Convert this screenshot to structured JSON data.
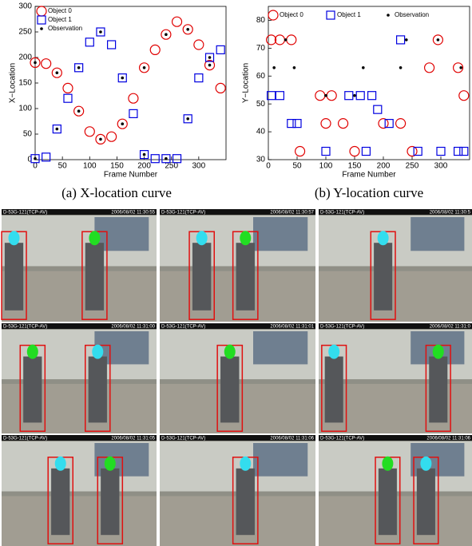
{
  "chart_data": [
    {
      "type": "scatter",
      "xlabel": "Frame Number",
      "ylabel": "X−Location",
      "xlim": [
        0,
        350
      ],
      "ylim": [
        0,
        300
      ],
      "xticks": [
        0,
        50,
        100,
        150,
        200,
        250,
        300
      ],
      "yticks": [
        0,
        50,
        100,
        150,
        200,
        250,
        300
      ],
      "series": [
        {
          "name": "Object 0",
          "color": "#e00000",
          "marker": "circle",
          "x": [
            0,
            20,
            40,
            60,
            80,
            100,
            120,
            140,
            160,
            180,
            200,
            220,
            240,
            260,
            280,
            300,
            320,
            340
          ],
          "values": [
            190,
            188,
            170,
            140,
            95,
            55,
            40,
            45,
            70,
            120,
            180,
            215,
            245,
            270,
            255,
            225,
            185,
            140
          ]
        },
        {
          "name": "Object 1",
          "color": "#0000e0",
          "marker": "square",
          "x": [
            0,
            20,
            40,
            60,
            80,
            100,
            120,
            140,
            160,
            180,
            200,
            220,
            240,
            260,
            280,
            300,
            320,
            340
          ],
          "values": [
            2,
            5,
            60,
            120,
            180,
            230,
            250,
            225,
            160,
            90,
            10,
            2,
            2,
            2,
            80,
            160,
            200,
            215
          ]
        },
        {
          "name": "Observation",
          "color": "#000000",
          "marker": "dot",
          "x": [
            0,
            40,
            80,
            120,
            160,
            200,
            240,
            280,
            320,
            0,
            40,
            80,
            120,
            160,
            200,
            240,
            280,
            320
          ],
          "values": [
            190,
            170,
            95,
            40,
            70,
            180,
            245,
            255,
            185,
            2,
            60,
            180,
            250,
            160,
            10,
            2,
            80,
            200
          ]
        }
      ]
    },
    {
      "type": "scatter",
      "xlabel": "Frame Number",
      "ylabel": "Y−Location",
      "xlim": [
        0,
        350
      ],
      "ylim": [
        30,
        85
      ],
      "xticks": [
        0,
        50,
        100,
        150,
        200,
        250,
        300
      ],
      "yticks": [
        30,
        40,
        50,
        60,
        70,
        80
      ],
      "series": [
        {
          "name": "Object 0",
          "color": "#e00000",
          "marker": "circle",
          "x": [
            5,
            20,
            40,
            55,
            90,
            100,
            110,
            130,
            150,
            200,
            230,
            250,
            280,
            295,
            330,
            340
          ],
          "values": [
            73,
            73,
            73,
            33,
            53,
            43,
            53,
            43,
            33,
            43,
            43,
            33,
            63,
            73,
            63,
            53
          ]
        },
        {
          "name": "Object 1",
          "color": "#0000e0",
          "marker": "square",
          "x": [
            5,
            20,
            40,
            50,
            100,
            140,
            160,
            170,
            180,
            190,
            210,
            230,
            260,
            300,
            330,
            340
          ],
          "values": [
            53,
            53,
            43,
            43,
            33,
            53,
            53,
            33,
            53,
            48,
            43,
            73,
            33,
            33,
            33,
            33
          ]
        },
        {
          "name": "Observation",
          "color": "#000000",
          "marker": "dot",
          "x": [
            10,
            30,
            45,
            100,
            150,
            165,
            230,
            240,
            295,
            335
          ],
          "values": [
            63,
            73,
            63,
            53,
            53,
            63,
            63,
            73,
            73,
            63
          ]
        }
      ]
    }
  ],
  "captions": [
    "(a) X-location curve",
    "(b) Y-location curve"
  ],
  "frames": [
    {
      "camera": "D-53G-121(TCP-AV)",
      "timestamp": "2006/08/02 11:30:55"
    },
    {
      "camera": "D-53G-121(TCP-AV)",
      "timestamp": "2006/08/02 11:30:57"
    },
    {
      "camera": "D-53G-121(TCP-AV)",
      "timestamp": "2006/08/02 11:30:5"
    },
    {
      "camera": "D-53G-121(TCP-AV)",
      "timestamp": "2006/08/02 11:31:00"
    },
    {
      "camera": "D-53G-121(TCP-AV)",
      "timestamp": "2006/08/02 11:31:01"
    },
    {
      "camera": "D-53G-121(TCP-AV)",
      "timestamp": "2006/08/02 11:31:0"
    },
    {
      "camera": "D-53G-121(TCP-AV)",
      "timestamp": "2006/08/02 11:31:05"
    },
    {
      "camera": "D-53G-121(TCP-AV)",
      "timestamp": "2006/08/02 11:31:06"
    },
    {
      "camera": "D-53G-121(TCP-AV)",
      "timestamp": "2006/08/02 11:31:06"
    }
  ]
}
